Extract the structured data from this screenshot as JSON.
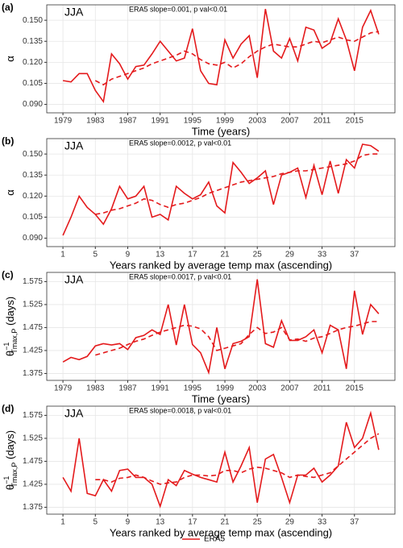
{
  "chart_data": [
    {
      "type": "line",
      "panel": "(a)",
      "annotation": "JJA",
      "slope_text": "ERA5 slope=0.001, p val<0.01",
      "xlabel": "Time (years)",
      "ylabel": "α",
      "x": [
        1979,
        1980,
        1981,
        1982,
        1983,
        1984,
        1985,
        1986,
        1987,
        1988,
        1989,
        1990,
        1991,
        1992,
        1993,
        1994,
        1995,
        1996,
        1997,
        1998,
        1999,
        2000,
        2001,
        2002,
        2003,
        2004,
        2005,
        2006,
        2007,
        2008,
        2009,
        2010,
        2011,
        2012,
        2013,
        2014,
        2015,
        2016,
        2017,
        2018
      ],
      "xlim": [
        1977,
        2020
      ],
      "xticks": [
        1979,
        1983,
        1987,
        1991,
        1995,
        1999,
        2003,
        2007,
        2011,
        2015
      ],
      "ylim": [
        0.084,
        0.161
      ],
      "yticks": [
        {
          "value": 0.09,
          "label": "0.090"
        },
        0.105,
        {
          "value": 0.12,
          "label": "0.120"
        },
        0.135,
        {
          "value": 0.15,
          "label": "0.150"
        }
      ],
      "grid": true,
      "series": [
        {
          "name": "ERA5",
          "color": "#e41a1c",
          "values": [
            0.107,
            0.106,
            0.112,
            0.112,
            0.1,
            0.092,
            0.126,
            0.119,
            0.108,
            0.117,
            0.118,
            0.126,
            0.135,
            0.128,
            0.121,
            0.123,
            0.144,
            0.114,
            0.105,
            0.104,
            0.136,
            0.123,
            0.133,
            0.139,
            0.109,
            0.158,
            0.128,
            0.123,
            0.137,
            0.121,
            0.145,
            0.143,
            0.13,
            0.134,
            0.151,
            0.136,
            0.114,
            0.145,
            0.157,
            0.14
          ]
        },
        {
          "color": "#e41a1c",
          "dashed": true,
          "values": [
            null,
            null,
            null,
            null,
            0.107,
            0.104,
            0.108,
            0.11,
            0.112,
            0.114,
            0.116,
            0.119,
            0.121,
            0.123,
            0.125,
            0.128,
            0.126,
            0.122,
            0.119,
            0.118,
            0.12,
            0.116,
            0.119,
            0.124,
            0.128,
            0.131,
            0.133,
            0.132,
            0.131,
            0.131,
            0.133,
            0.135,
            0.134,
            0.136,
            0.138,
            0.136,
            0.135,
            0.138,
            0.141,
            0.142
          ]
        }
      ]
    },
    {
      "type": "line",
      "panel": "(b)",
      "annotation": "JJA",
      "slope_text": "ERA5 slope=0.0012, p val<0.01",
      "xlabel": "Years ranked by average temp max (ascending)",
      "ylabel": "α",
      "x": [
        1,
        2,
        3,
        4,
        5,
        6,
        7,
        8,
        9,
        10,
        11,
        12,
        13,
        14,
        15,
        16,
        17,
        18,
        19,
        20,
        21,
        22,
        23,
        24,
        25,
        26,
        27,
        28,
        29,
        30,
        31,
        32,
        33,
        34,
        35,
        36,
        37,
        38,
        39,
        40
      ],
      "xlim": [
        -1,
        42
      ],
      "xticks": [
        1,
        5,
        9,
        13,
        17,
        21,
        25,
        29,
        33,
        37
      ],
      "ylim": [
        0.084,
        0.161
      ],
      "yticks": [
        {
          "value": 0.09,
          "label": "0.090"
        },
        0.105,
        {
          "value": 0.12,
          "label": "0.120"
        },
        0.135,
        {
          "value": 0.15,
          "label": "0.150"
        }
      ],
      "grid": true,
      "series": [
        {
          "name": "ERA5",
          "color": "#e41a1c",
          "values": [
            0.092,
            0.105,
            0.12,
            0.112,
            0.107,
            0.1,
            0.111,
            0.127,
            0.118,
            0.12,
            0.127,
            0.105,
            0.107,
            0.103,
            0.127,
            0.122,
            0.118,
            0.121,
            0.13,
            0.113,
            0.108,
            0.144,
            0.137,
            0.129,
            0.133,
            0.138,
            0.114,
            0.135,
            0.137,
            0.14,
            0.119,
            0.142,
            0.121,
            0.145,
            0.122,
            0.146,
            0.14,
            0.157,
            0.156,
            0.152
          ]
        },
        {
          "color": "#e41a1c",
          "dashed": true,
          "values": [
            null,
            null,
            null,
            null,
            0.107,
            0.108,
            0.11,
            0.111,
            0.113,
            0.115,
            0.118,
            0.117,
            0.114,
            0.112,
            0.114,
            0.115,
            0.117,
            0.119,
            0.122,
            0.124,
            0.126,
            0.128,
            0.13,
            0.131,
            0.132,
            0.133,
            0.134,
            0.136,
            0.137,
            0.138,
            0.138,
            0.139,
            0.14,
            0.141,
            0.142,
            0.143,
            0.145,
            0.149,
            0.15,
            0.15
          ]
        }
      ]
    },
    {
      "type": "line",
      "panel": "(c)",
      "annotation": "JJA",
      "slope_text": "ERA5 slope=0.0017, p val<0.01",
      "xlabel": "Time (years)",
      "ylabel": "θ",
      "ylabel_sup": "−1",
      "ylabel_sub": "Tmax,P",
      "ylabel_unit": " (days)",
      "x": [
        1979,
        1980,
        1981,
        1982,
        1983,
        1984,
        1985,
        1986,
        1987,
        1988,
        1989,
        1990,
        1991,
        1992,
        1993,
        1994,
        1995,
        1996,
        1997,
        1998,
        1999,
        2000,
        2001,
        2002,
        2003,
        2004,
        2005,
        2006,
        2007,
        2008,
        2009,
        2010,
        2011,
        2012,
        2013,
        2014,
        2015,
        2016,
        2017,
        2018
      ],
      "xlim": [
        1977,
        2020
      ],
      "xticks": [
        1979,
        1983,
        1987,
        1991,
        1995,
        1999,
        2003,
        2007,
        2011,
        2015
      ],
      "ylim": [
        1.36,
        1.595
      ],
      "yticks": [
        1.375,
        1.425,
        1.475,
        1.525,
        1.575
      ],
      "grid": true,
      "series": [
        {
          "name": "ERA5",
          "color": "#e41a1c",
          "values": [
            1.4,
            1.41,
            1.405,
            1.412,
            1.435,
            1.44,
            1.437,
            1.44,
            1.427,
            1.453,
            1.458,
            1.47,
            1.46,
            1.525,
            1.437,
            1.525,
            1.438,
            1.42,
            1.377,
            1.475,
            1.385,
            1.44,
            1.445,
            1.455,
            1.58,
            1.44,
            1.432,
            1.49,
            1.447,
            1.447,
            1.455,
            1.47,
            1.42,
            1.48,
            1.47,
            1.385,
            1.555,
            1.46,
            1.525,
            1.505
          ]
        },
        {
          "color": "#e41a1c",
          "dashed": true,
          "values": [
            null,
            null,
            null,
            null,
            1.415,
            1.42,
            1.425,
            1.43,
            1.438,
            1.445,
            1.45,
            1.458,
            1.465,
            1.47,
            1.475,
            1.48,
            1.478,
            1.472,
            1.455,
            1.425,
            1.43,
            1.435,
            1.44,
            1.46,
            1.475,
            1.462,
            1.465,
            1.475,
            1.448,
            1.45,
            1.445,
            1.452,
            1.455,
            1.462,
            1.47,
            1.475,
            1.478,
            1.483,
            1.488,
            1.488
          ]
        }
      ]
    },
    {
      "type": "line",
      "panel": "(d)",
      "annotation": "JJA",
      "slope_text": "ERA5 slope=0.0018, p val<0.01",
      "xlabel": "Years ranked by average temp max (ascending)",
      "ylabel": "θ",
      "ylabel_sup": "−1",
      "ylabel_sub": "Tmax,P",
      "ylabel_unit": " (days)",
      "x": [
        1,
        2,
        3,
        4,
        5,
        6,
        7,
        8,
        9,
        10,
        11,
        12,
        13,
        14,
        15,
        16,
        17,
        18,
        19,
        20,
        21,
        22,
        23,
        24,
        25,
        26,
        27,
        28,
        29,
        30,
        31,
        32,
        33,
        34,
        35,
        36,
        37,
        38,
        39,
        40
      ],
      "xlim": [
        -1,
        42
      ],
      "xticks": [
        1,
        5,
        9,
        13,
        17,
        21,
        25,
        29,
        33,
        37
      ],
      "ylim": [
        1.36,
        1.595
      ],
      "yticks": [
        1.375,
        1.425,
        1.475,
        1.525,
        1.575
      ],
      "grid": true,
      "series": [
        {
          "name": "ERA5",
          "color": "#e41a1c",
          "values": [
            1.44,
            1.41,
            1.525,
            1.405,
            1.4,
            1.435,
            1.41,
            1.455,
            1.458,
            1.44,
            1.44,
            1.425,
            1.377,
            1.435,
            1.422,
            1.455,
            1.447,
            1.44,
            1.435,
            1.43,
            1.495,
            1.43,
            1.465,
            1.505,
            1.385,
            1.48,
            1.49,
            1.44,
            1.385,
            1.445,
            1.445,
            1.46,
            1.43,
            1.445,
            1.465,
            1.56,
            1.505,
            1.525,
            1.58,
            1.5
          ]
        },
        {
          "color": "#e41a1c",
          "dashed": true,
          "values": [
            null,
            null,
            null,
            null,
            1.435,
            1.435,
            1.43,
            1.438,
            1.44,
            1.445,
            1.44,
            1.432,
            1.425,
            1.428,
            1.43,
            1.44,
            1.445,
            1.445,
            1.443,
            1.445,
            1.455,
            1.455,
            1.45,
            1.458,
            1.462,
            1.46,
            1.455,
            1.45,
            1.44,
            1.445,
            1.442,
            1.44,
            1.445,
            1.45,
            1.465,
            1.48,
            1.495,
            1.51,
            1.525,
            1.535
          ]
        }
      ]
    }
  ]
}
